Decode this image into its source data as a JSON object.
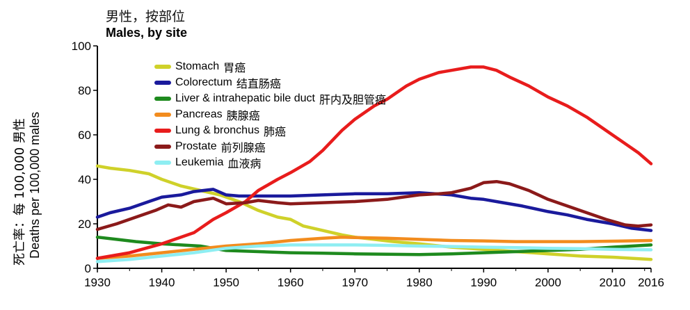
{
  "chart_data": {
    "type": "line",
    "title": "男性，按部位",
    "subtitle": "Males, by site",
    "xlabel": "",
    "ylabel_zh": "死亡率：每 100,000 男性",
    "ylabel_en": "Deaths per 100,000 males",
    "xlim": [
      1930,
      2016
    ],
    "ylim": [
      0,
      100
    ],
    "xticks": [
      1930,
      1940,
      1950,
      1960,
      1970,
      1980,
      1990,
      2000,
      2010,
      2016
    ],
    "yticks": [
      0,
      20,
      40,
      60,
      80,
      100
    ],
    "legend_position": "top-left",
    "series": [
      {
        "name": "Stomach",
        "name_zh": "胃癌",
        "color": "#cfd12a",
        "x": [
          1930,
          1932,
          1935,
          1938,
          1940,
          1943,
          1946,
          1949,
          1952,
          1955,
          1958,
          1960,
          1962,
          1965,
          1968,
          1970,
          1973,
          1976,
          1980,
          1985,
          1990,
          1995,
          2000,
          2005,
          2010,
          2016
        ],
        "y": [
          46,
          45,
          44,
          42.5,
          40,
          37,
          35,
          33,
          30,
          26,
          23,
          22,
          19,
          17,
          15,
          14,
          13,
          12,
          11,
          9.5,
          8.5,
          7.5,
          6.5,
          5.5,
          5,
          4
        ]
      },
      {
        "name": "Colorectum",
        "name_zh": "结直肠癌",
        "color": "#1a1a9c",
        "x": [
          1930,
          1932,
          1935,
          1938,
          1940,
          1943,
          1945,
          1948,
          1950,
          1952,
          1955,
          1960,
          1965,
          1970,
          1975,
          1980,
          1985,
          1988,
          1990,
          1993,
          1996,
          2000,
          2003,
          2006,
          2010,
          2013,
          2016
        ],
        "y": [
          23,
          25,
          27,
          30,
          32,
          33,
          34.5,
          35.5,
          33,
          32.5,
          32.5,
          32.5,
          33,
          33.5,
          33.5,
          34,
          33,
          31.5,
          31,
          29.5,
          28,
          25.5,
          24,
          22,
          20,
          18,
          17
        ]
      },
      {
        "name": "Liver & intrahepatic bile duct",
        "name_zh": "肝内及胆管癌",
        "color": "#1e8a1e",
        "x": [
          1930,
          1933,
          1936,
          1940,
          1943,
          1946,
          1950,
          1955,
          1960,
          1965,
          1970,
          1975,
          1980,
          1985,
          1990,
          1995,
          2000,
          2005,
          2010,
          2016
        ],
        "y": [
          14,
          13,
          12,
          11,
          10.5,
          10,
          8,
          7.5,
          7,
          6.8,
          6.5,
          6.3,
          6.2,
          6.5,
          7,
          7.5,
          8,
          8.5,
          9.5,
          10.5
        ]
      },
      {
        "name": "Pancreas",
        "name_zh": "胰腺癌",
        "color": "#f28c1e",
        "x": [
          1930,
          1935,
          1940,
          1945,
          1950,
          1955,
          1960,
          1965,
          1968,
          1970,
          1975,
          1980,
          1985,
          1990,
          1995,
          2000,
          2005,
          2010,
          2016
        ],
        "y": [
          4.5,
          5.5,
          7,
          8.5,
          10,
          11,
          12.5,
          13.5,
          14,
          13.8,
          13.5,
          13,
          12.5,
          12.3,
          12,
          12,
          12,
          12.2,
          12.5
        ]
      },
      {
        "name": "Lung & bronchus",
        "name_zh": "肺癌",
        "color": "#e81c1c",
        "x": [
          1930,
          1935,
          1940,
          1945,
          1948,
          1950,
          1953,
          1955,
          1958,
          1960,
          1963,
          1965,
          1968,
          1970,
          1973,
          1975,
          1978,
          1980,
          1983,
          1985,
          1988,
          1990,
          1992,
          1994,
          1997,
          2000,
          2003,
          2006,
          2009,
          2012,
          2014,
          2016
        ],
        "y": [
          4.5,
          7,
          11,
          16,
          22,
          25,
          30,
          35,
          40,
          43,
          48,
          53,
          62,
          67,
          73,
          76,
          82,
          85,
          88,
          89,
          90.5,
          90.5,
          89,
          86,
          82,
          77,
          73,
          68,
          62,
          56,
          52,
          47
        ]
      },
      {
        "name": "Prostate",
        "name_zh": "前列腺癌",
        "color": "#8b1a1a",
        "x": [
          1930,
          1933,
          1936,
          1939,
          1941,
          1943,
          1945,
          1948,
          1950,
          1953,
          1955,
          1958,
          1960,
          1965,
          1970,
          1975,
          1980,
          1983,
          1985,
          1988,
          1990,
          1992,
          1994,
          1997,
          2000,
          2003,
          2006,
          2009,
          2012,
          2014,
          2016
        ],
        "y": [
          17.5,
          20,
          23,
          26,
          28.5,
          27.5,
          30,
          31.5,
          29,
          29.5,
          30.5,
          29.5,
          29,
          29.5,
          30,
          31,
          33,
          33.5,
          34,
          36,
          38.5,
          39,
          38,
          35,
          31,
          28,
          25,
          22,
          19.5,
          19,
          19.5
        ]
      },
      {
        "name": "Leukemia",
        "name_zh": "血液病",
        "color": "#8eeef2",
        "x": [
          1930,
          1935,
          1940,
          1945,
          1950,
          1955,
          1960,
          1965,
          1970,
          1975,
          1980,
          1985,
          1990,
          1995,
          2000,
          2005,
          2010,
          2016
        ],
        "y": [
          3,
          4,
          5.5,
          7,
          9,
          10,
          10.5,
          10.5,
          10.5,
          10.3,
          10,
          9.8,
          9.5,
          9.3,
          9,
          8.8,
          8.5,
          8.3
        ]
      }
    ]
  }
}
